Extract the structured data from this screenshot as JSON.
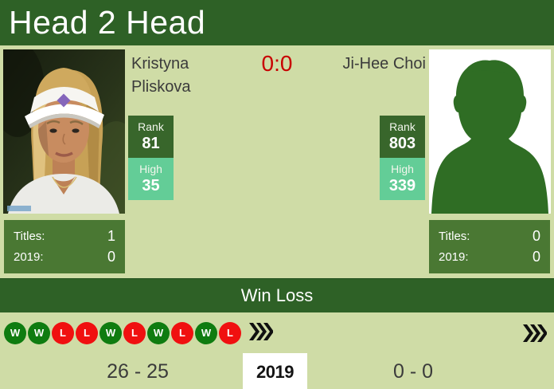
{
  "header": {
    "title": "Head 2 Head"
  },
  "score": "0:0",
  "players": {
    "left": {
      "name": "Kristyna Pliskova",
      "rank_label": "Rank",
      "rank_value": "81",
      "high_label": "High",
      "high_value": "35",
      "titles_label": "Titles:",
      "titles_value": "1",
      "season_label": "2019:",
      "season_value": "0"
    },
    "right": {
      "name": "Ji-Hee Choi",
      "rank_label": "Rank",
      "rank_value": "803",
      "high_label": "High",
      "high_value": "339",
      "titles_label": "Titles:",
      "titles_value": "0",
      "season_label": "2019:",
      "season_value": "0"
    }
  },
  "win_loss": {
    "title": "Win Loss",
    "recent_results": [
      "W",
      "W",
      "L",
      "L",
      "W",
      "L",
      "W",
      "L",
      "W",
      "L"
    ],
    "left_record": "26 - 25",
    "season_year": "2019",
    "right_record": "0 - 0"
  },
  "colors": {
    "header_green": "#2e6126",
    "background_green": "#cfdca6",
    "panel_green": "#4a7833",
    "rank_badge_green": "#38662b",
    "high_badge_mint": "#63cd97",
    "score_red": "#c80000",
    "win_circle_green": "#0f7c10",
    "loss_circle_red": "#f01010",
    "silhouette_green": "#2f6d24"
  }
}
